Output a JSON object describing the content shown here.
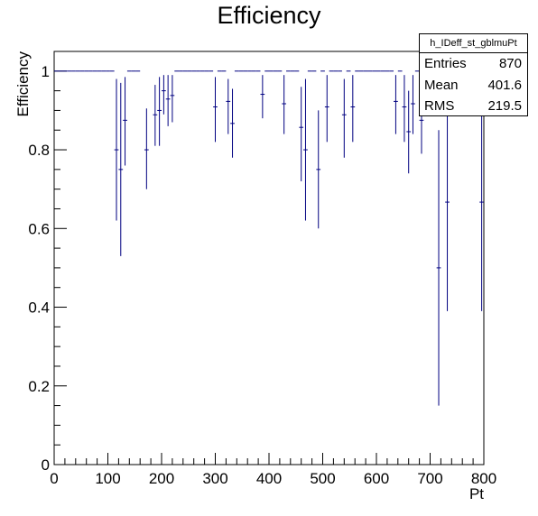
{
  "chart_data": {
    "type": "scatter",
    "title": "Efficiency",
    "xlabel": "Pt",
    "ylabel": "Efficiency",
    "xlim": [
      0,
      800
    ],
    "ylim": [
      0,
      1.05
    ],
    "x_ticks": [
      0,
      100,
      200,
      300,
      400,
      500,
      600,
      700,
      800
    ],
    "y_ticks": [
      0,
      0.2,
      0.4,
      0.6,
      0.8,
      1
    ],
    "bin_width": 8,
    "grid": false,
    "color": "#000080",
    "points": [
      {
        "x": 4,
        "y": 1
      },
      {
        "x": 12,
        "y": 1
      },
      {
        "x": 20,
        "y": 1
      },
      {
        "x": 28,
        "y": 1
      },
      {
        "x": 36,
        "y": 1
      },
      {
        "x": 44,
        "y": 1
      },
      {
        "x": 52,
        "y": 1
      },
      {
        "x": 60,
        "y": 1
      },
      {
        "x": 68,
        "y": 1
      },
      {
        "x": 76,
        "y": 1
      },
      {
        "x": 84,
        "y": 1
      },
      {
        "x": 92,
        "y": 1
      },
      {
        "x": 100,
        "y": 1
      },
      {
        "x": 108,
        "y": 1
      },
      {
        "x": 116,
        "y": 0.8,
        "lo": 0.62,
        "hi": 0.98
      },
      {
        "x": 124,
        "y": 0.75,
        "lo": 0.53,
        "hi": 0.97
      },
      {
        "x": 132,
        "y": 0.875,
        "lo": 0.76,
        "hi": 0.985
      },
      {
        "x": 140,
        "y": 1
      },
      {
        "x": 148,
        "y": 1
      },
      {
        "x": 156,
        "y": 1
      },
      {
        "x": 172,
        "y": 0.8,
        "lo": 0.7,
        "hi": 0.905
      },
      {
        "x": 188,
        "y": 0.889,
        "lo": 0.81,
        "hi": 0.965
      },
      {
        "x": 196,
        "y": 0.9,
        "lo": 0.81,
        "hi": 0.985
      },
      {
        "x": 204,
        "y": 0.95,
        "lo": 0.89,
        "hi": 0.99
      },
      {
        "x": 212,
        "y": 0.929,
        "lo": 0.86,
        "hi": 0.99
      },
      {
        "x": 220,
        "y": 0.938,
        "lo": 0.87,
        "hi": 0.99
      },
      {
        "x": 228,
        "y": 1
      },
      {
        "x": 236,
        "y": 1
      },
      {
        "x": 244,
        "y": 1
      },
      {
        "x": 252,
        "y": 1
      },
      {
        "x": 260,
        "y": 1
      },
      {
        "x": 268,
        "y": 1
      },
      {
        "x": 276,
        "y": 1
      },
      {
        "x": 284,
        "y": 1
      },
      {
        "x": 292,
        "y": 1
      },
      {
        "x": 300,
        "y": 0.909,
        "lo": 0.82,
        "hi": 0.985
      },
      {
        "x": 308,
        "y": 1
      },
      {
        "x": 316,
        "y": 1
      },
      {
        "x": 324,
        "y": 0.923,
        "lo": 0.84,
        "hi": 0.98
      },
      {
        "x": 332,
        "y": 0.867,
        "lo": 0.78,
        "hi": 0.955
      },
      {
        "x": 340,
        "y": 1
      },
      {
        "x": 348,
        "y": 1
      },
      {
        "x": 356,
        "y": 1
      },
      {
        "x": 364,
        "y": 1
      },
      {
        "x": 372,
        "y": 1
      },
      {
        "x": 380,
        "y": 1
      },
      {
        "x": 388,
        "y": 0.941,
        "lo": 0.88,
        "hi": 0.99
      },
      {
        "x": 396,
        "y": 1
      },
      {
        "x": 404,
        "y": 1
      },
      {
        "x": 412,
        "y": 1
      },
      {
        "x": 420,
        "y": 1
      },
      {
        "x": 428,
        "y": 0.917,
        "lo": 0.84,
        "hi": 0.99
      },
      {
        "x": 436,
        "y": 1
      },
      {
        "x": 444,
        "y": 1
      },
      {
        "x": 452,
        "y": 1
      },
      {
        "x": 460,
        "y": 0.857,
        "lo": 0.72,
        "hi": 0.96
      },
      {
        "x": 468,
        "y": 0.8,
        "lo": 0.62,
        "hi": 0.98
      },
      {
        "x": 476,
        "y": 1
      },
      {
        "x": 484,
        "y": 1
      },
      {
        "x": 492,
        "y": 0.75,
        "lo": 0.6,
        "hi": 0.9
      },
      {
        "x": 500,
        "y": 1
      },
      {
        "x": 508,
        "y": 0.909,
        "lo": 0.82,
        "hi": 0.99
      },
      {
        "x": 516,
        "y": 1
      },
      {
        "x": 524,
        "y": 1
      },
      {
        "x": 532,
        "y": 1
      },
      {
        "x": 540,
        "y": 0.889,
        "lo": 0.78,
        "hi": 0.98
      },
      {
        "x": 548,
        "y": 1
      },
      {
        "x": 556,
        "y": 0.909,
        "lo": 0.82,
        "hi": 0.99
      },
      {
        "x": 564,
        "y": 1
      },
      {
        "x": 572,
        "y": 1
      },
      {
        "x": 580,
        "y": 1
      },
      {
        "x": 588,
        "y": 1
      },
      {
        "x": 596,
        "y": 1
      },
      {
        "x": 604,
        "y": 1
      },
      {
        "x": 612,
        "y": 1
      },
      {
        "x": 620,
        "y": 1
      },
      {
        "x": 628,
        "y": 1
      },
      {
        "x": 636,
        "y": 0.923,
        "lo": 0.84,
        "hi": 0.99
      },
      {
        "x": 644,
        "y": 1
      },
      {
        "x": 652,
        "y": 0.909,
        "lo": 0.82,
        "hi": 0.99
      },
      {
        "x": 660,
        "y": 0.846,
        "lo": 0.74,
        "hi": 0.95
      },
      {
        "x": 668,
        "y": 0.917,
        "lo": 0.84,
        "hi": 0.99
      },
      {
        "x": 676,
        "y": 1
      },
      {
        "x": 684,
        "y": 0.875,
        "lo": 0.79,
        "hi": 0.96
      },
      {
        "x": 700,
        "y": 1
      },
      {
        "x": 708,
        "y": 1
      },
      {
        "x": 716,
        "y": 0.5,
        "lo": 0.15,
        "hi": 0.85
      },
      {
        "x": 732,
        "y": 0.667,
        "lo": 0.39,
        "hi": 0.94
      },
      {
        "x": 748,
        "y": 1
      },
      {
        "x": 756,
        "y": 1
      },
      {
        "x": 796,
        "y": 0.667,
        "lo": 0.39,
        "hi": 0.94
      }
    ]
  },
  "stats": {
    "name": "h_IDeff_st_gblmuPt",
    "rows": [
      {
        "label": "Entries",
        "value": "870"
      },
      {
        "label": "Mean",
        "value": "401.6"
      },
      {
        "label": "RMS",
        "value": "219.5"
      }
    ]
  }
}
